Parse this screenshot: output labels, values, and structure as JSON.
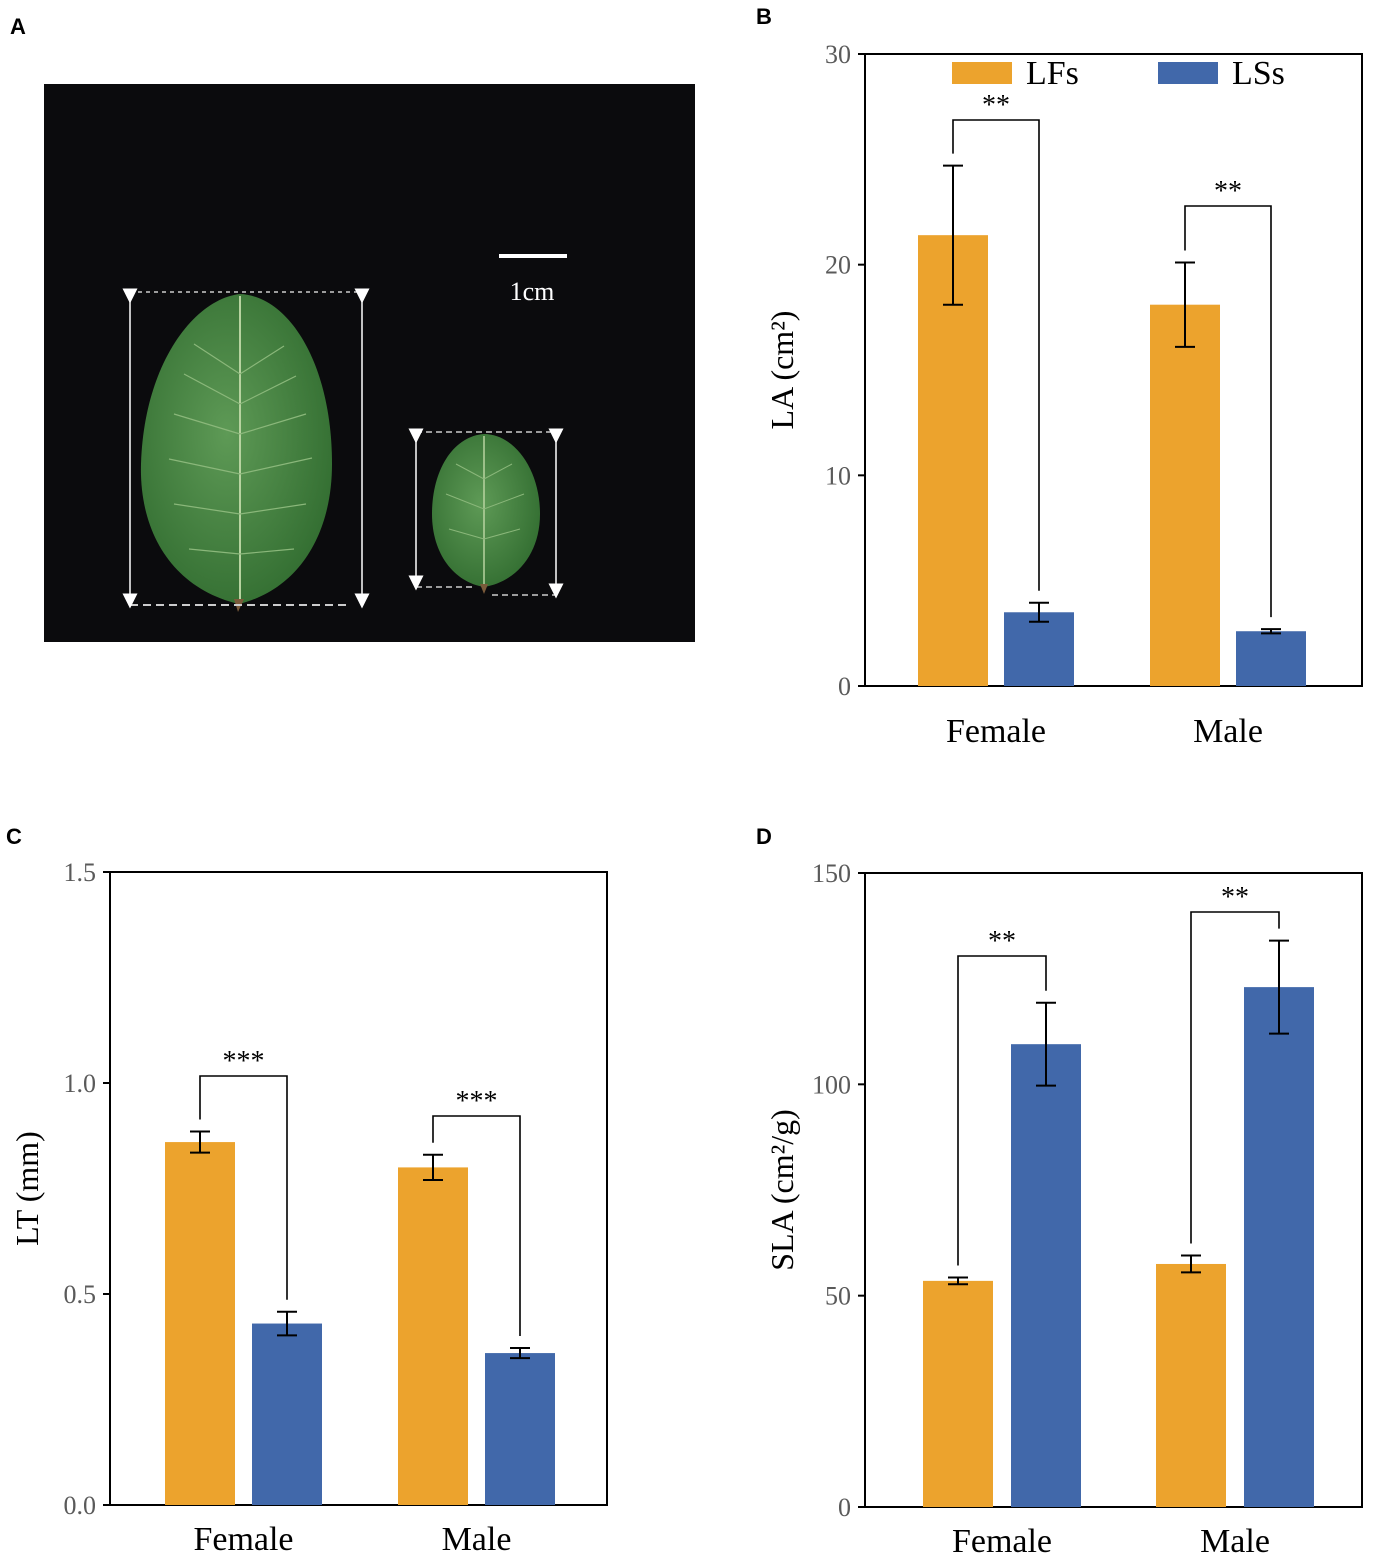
{
  "panels": {
    "a": {
      "letter": "A",
      "scale_label": "1cm"
    },
    "b": {
      "letter": "B"
    },
    "c": {
      "letter": "C"
    },
    "d": {
      "letter": "D"
    }
  },
  "colors": {
    "LFs": "#eca32d",
    "LSs": "#4168aa",
    "leaf": "#3f7a3a",
    "photo_bg": "#0b0b0d"
  },
  "legend": [
    "LFs",
    "LSs"
  ],
  "chart_data": [
    {
      "id": "B",
      "type": "bar",
      "ylabel": "LA (cm²)",
      "ylim": [
        0,
        30
      ],
      "yticks": [
        "0",
        "10",
        "20",
        "30"
      ],
      "categories": [
        "Female",
        "Male"
      ],
      "series": [
        {
          "name": "LFs",
          "values": [
            21.4,
            18.1
          ],
          "errors": [
            3.3,
            2.0
          ]
        },
        {
          "name": "LSs",
          "values": [
            3.5,
            2.6
          ],
          "errors": [
            0.45,
            0.1
          ]
        }
      ],
      "significance": [
        "**",
        "**"
      ]
    },
    {
      "id": "C",
      "type": "bar",
      "ylabel": "LT (mm)",
      "ylim": [
        0,
        1.5
      ],
      "yticks": [
        "0.0",
        "0.5",
        "1.0",
        "1.5"
      ],
      "categories": [
        "Female",
        "Male"
      ],
      "series": [
        {
          "name": "LFs",
          "values": [
            0.86,
            0.8
          ],
          "errors": [
            0.025,
            0.03
          ]
        },
        {
          "name": "LSs",
          "values": [
            0.43,
            0.36
          ],
          "errors": [
            0.028,
            0.012
          ]
        }
      ],
      "significance": [
        "***",
        "***"
      ]
    },
    {
      "id": "D",
      "type": "bar",
      "ylabel": "SLA (cm²/g)",
      "ylim": [
        0,
        150
      ],
      "yticks": [
        "0",
        "50",
        "100",
        "150"
      ],
      "categories": [
        "Female",
        "Male"
      ],
      "series": [
        {
          "name": "LFs",
          "values": [
            53.5,
            57.5
          ],
          "errors": [
            0.8,
            2.0
          ]
        },
        {
          "name": "LSs",
          "values": [
            109.5,
            123.0
          ],
          "errors": [
            9.8,
            11.0
          ]
        }
      ],
      "significance": [
        "**",
        "**"
      ]
    }
  ]
}
